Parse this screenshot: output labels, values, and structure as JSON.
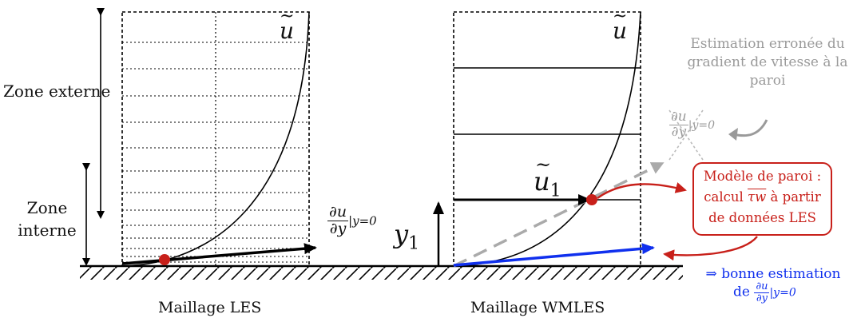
{
  "labels": {
    "zone_externe": "Zone externe",
    "zone_interne": "Zone interne",
    "caption_les": "Maillage LES",
    "caption_wmles": "Maillage WMLES",
    "u_tilde_left": "u",
    "u_tilde_right": "u",
    "u1_base": "u",
    "u1_sub": "1",
    "y1_base": "y",
    "y1_sub": "1",
    "grad_num": "∂u",
    "grad_den": "∂y",
    "grad_eval": "|y=0"
  },
  "gray_note": {
    "text": "Estimation erronée du gradient de vitesse à la paroi",
    "grad_num": "∂u",
    "grad_den": "∂y",
    "grad_eval": "|y=0"
  },
  "wall_model_box": {
    "line1": "Modèle de paroi :",
    "line2_pre": "calcul",
    "tau": "τw",
    "line2_post": "à partir",
    "line3": "de données LES"
  },
  "blue_note": {
    "line1": "⇒ bonne estimation",
    "line2_pre": "de",
    "grad_num": "∂u",
    "grad_den": "∂y",
    "grad_eval": "|y=0"
  },
  "colors": {
    "red": "#c8201a",
    "blue": "#1030ee",
    "gray": "#9a9a9a",
    "black": "#000000"
  }
}
